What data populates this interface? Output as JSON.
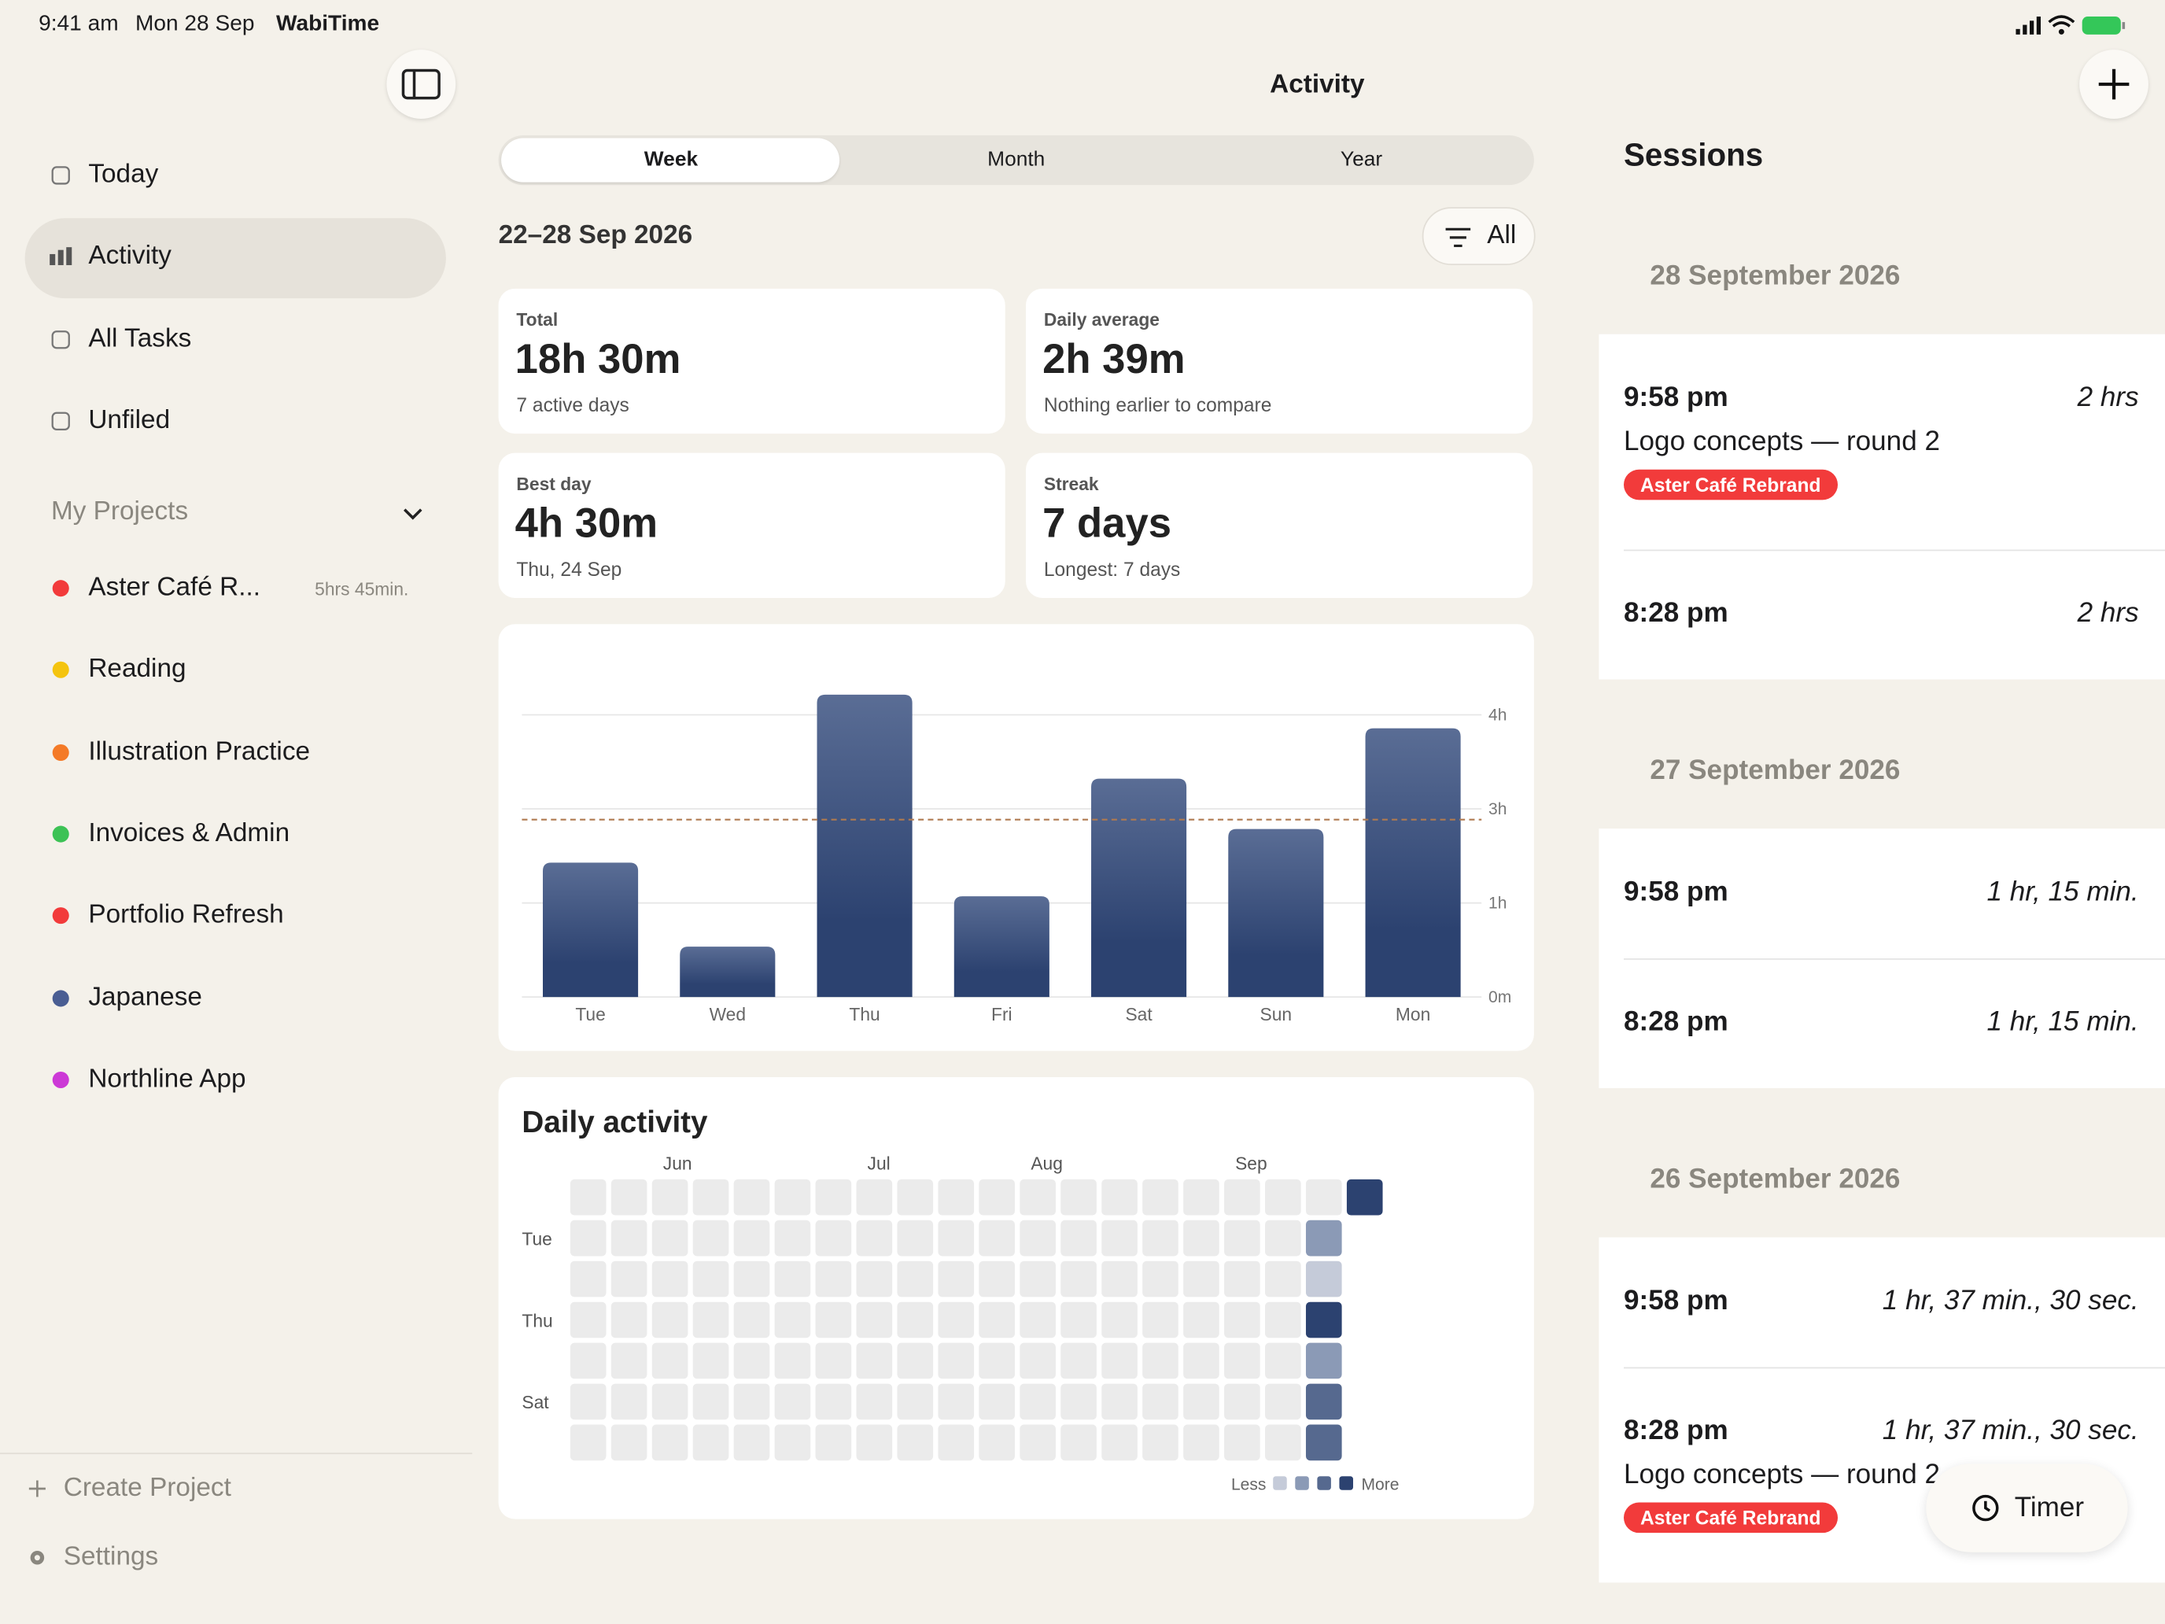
{
  "status_bar": {
    "time": "9:41 am",
    "date": "Mon 28 Sep",
    "app": "WabiTime"
  },
  "sidebar": {
    "nav": [
      "Today",
      "Activity",
      "All Tasks",
      "Unfiled"
    ],
    "projects_title": "My Projects",
    "projects": [
      {
        "name": "Aster Café R...",
        "color": "#f23b3b",
        "duration": "5hrs 45min."
      },
      {
        "name": "Reading",
        "color": "#f4c40f"
      },
      {
        "name": "Illustration Practice",
        "color": "#f47a27"
      },
      {
        "name": "Invoices & Admin",
        "color": "#3cc255"
      },
      {
        "name": "Portfolio Refresh",
        "color": "#f23b3b"
      },
      {
        "name": "Japanese",
        "color": "#4a5e93"
      },
      {
        "name": "Northline App",
        "color": "#cc39d6"
      }
    ],
    "footer": [
      "Create Project",
      "Settings"
    ]
  },
  "header": {
    "title": "Activity",
    "segments": [
      "Week",
      "Month",
      "Year"
    ],
    "range": "22–28 Sep 2026",
    "filter": "All"
  },
  "stats": [
    {
      "label": "Total",
      "value": "18h 30m",
      "note": "7 active days"
    },
    {
      "label": "Daily average",
      "value": "2h 39m",
      "note": "Nothing earlier to compare"
    },
    {
      "label": "Best day",
      "value": "4h 30m",
      "note": "Thu, 24 Sep"
    },
    {
      "label": "Streak",
      "value": "7 days",
      "note": "Longest: 7 days"
    }
  ],
  "chart_data": {
    "type": "bar",
    "categories": [
      "Tue",
      "Wed",
      "Thu",
      "Fri",
      "Sat",
      "Sun",
      "Mon"
    ],
    "values": [
      2.0,
      0.75,
      4.5,
      1.5,
      3.25,
      2.5,
      4.0
    ],
    "color": "#2c4270",
    "color_top": "#5a6d95",
    "ylim": [
      0,
      5
    ],
    "yticks": [
      {
        "value": 0,
        "label": "0m"
      },
      {
        "value": 1.4,
        "label": "1h"
      },
      {
        "value": 2.8,
        "label": "3h"
      },
      {
        "value": 4.2,
        "label": "4h"
      }
    ],
    "average": 2.64,
    "average_color": "#b07a50",
    "grid": true
  },
  "heatmap": {
    "title": "Daily activity",
    "columns": [
      null,
      null,
      "Jun",
      null,
      null,
      null,
      null,
      "Jul",
      null,
      null,
      null,
      "Aug",
      null,
      null,
      null,
      null,
      "Sep",
      null,
      null,
      null
    ],
    "row_labels": [
      null,
      "Tue",
      null,
      "Thu",
      null,
      "Sat",
      null
    ],
    "cells": [
      [
        0,
        0,
        0,
        0,
        0,
        0,
        0,
        0,
        0,
        0,
        0,
        0,
        0,
        0,
        0,
        0,
        0,
        0,
        0,
        4
      ],
      [
        0,
        0,
        0,
        0,
        0,
        0,
        0,
        0,
        0,
        0,
        0,
        0,
        0,
        0,
        0,
        0,
        0,
        0,
        2,
        null
      ],
      [
        0,
        0,
        0,
        0,
        0,
        0,
        0,
        0,
        0,
        0,
        0,
        0,
        0,
        0,
        0,
        0,
        0,
        0,
        1,
        null
      ],
      [
        0,
        0,
        0,
        0,
        0,
        0,
        0,
        0,
        0,
        0,
        0,
        0,
        0,
        0,
        0,
        0,
        0,
        0,
        4,
        null
      ],
      [
        0,
        0,
        0,
        0,
        0,
        0,
        0,
        0,
        0,
        0,
        0,
        0,
        0,
        0,
        0,
        0,
        0,
        0,
        2,
        null
      ],
      [
        0,
        0,
        0,
        0,
        0,
        0,
        0,
        0,
        0,
        0,
        0,
        0,
        0,
        0,
        0,
        0,
        0,
        0,
        3,
        null
      ],
      [
        0,
        0,
        0,
        0,
        0,
        0,
        0,
        0,
        0,
        0,
        0,
        0,
        0,
        0,
        0,
        0,
        0,
        0,
        3,
        null
      ]
    ],
    "colors": [
      "#ebebeb",
      "#c5cbd9",
      "#8b9ab6",
      "#56698f",
      "#2c4270"
    ],
    "legend_less": "Less",
    "legend_more": "More"
  },
  "sessions": {
    "title": "Sessions",
    "days": [
      {
        "date": "28 September 2026",
        "entries": [
          {
            "time": "9:58 pm",
            "duration": "2 hrs",
            "task": "Logo concepts — round 2",
            "project": "Aster Café Rebrand"
          },
          {
            "time": "8:28 pm",
            "duration": "2 hrs"
          }
        ]
      },
      {
        "date": "27 September 2026",
        "entries": [
          {
            "time": "9:58 pm",
            "duration": "1 hr, 15 min."
          },
          {
            "time": "8:28 pm",
            "duration": "1 hr, 15 min."
          }
        ]
      },
      {
        "date": "26 September 2026",
        "entries": [
          {
            "time": "9:58 pm",
            "duration": "1 hr, 37 min., 30 sec."
          },
          {
            "time": "8:28 pm",
            "duration": "1 hr, 37 min., 30 sec.",
            "task": "Logo concepts — round 2",
            "project": "Aster Café Rebrand"
          }
        ]
      }
    ],
    "timer": "Timer"
  }
}
